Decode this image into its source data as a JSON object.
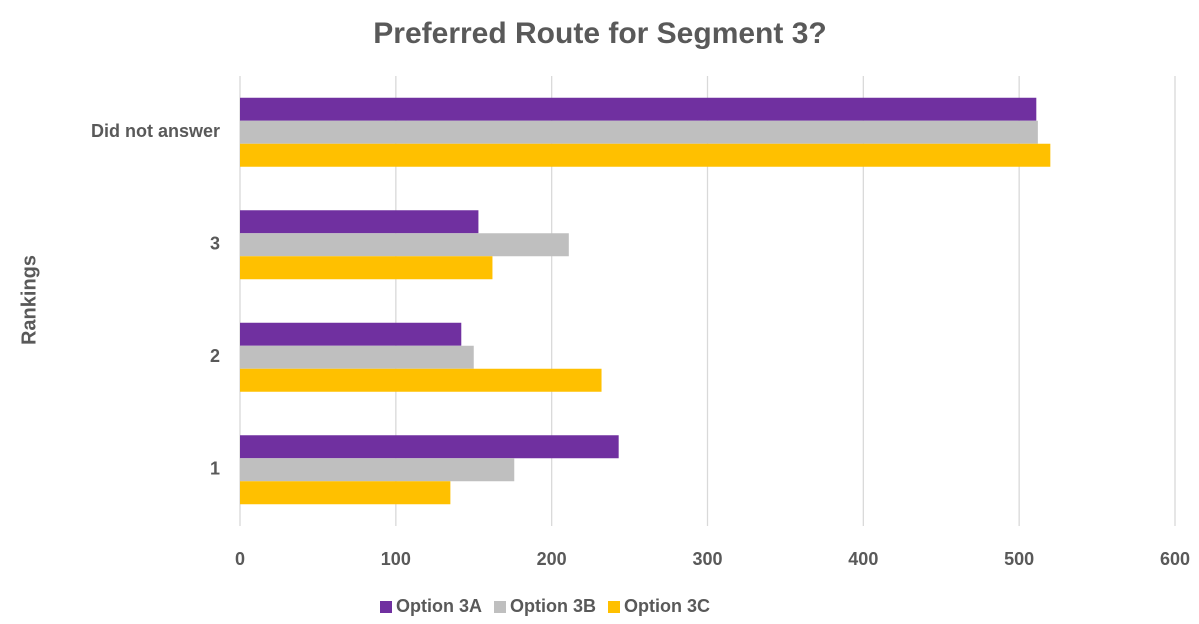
{
  "chart_data": {
    "type": "hbar",
    "title": "Preferred Route for Segment 3?",
    "y_label": "Rankings",
    "categories": [
      "1",
      "2",
      "3",
      "Did not answer"
    ],
    "series": [
      {
        "name": "Option 3A",
        "color": "#7030a0",
        "values": [
          243,
          142,
          153,
          511
        ]
      },
      {
        "name": "Option 3B",
        "color": "#bfbfbf",
        "values": [
          176,
          150,
          211,
          512
        ]
      },
      {
        "name": "Option 3C",
        "color": "#ffc000",
        "values": [
          135,
          232,
          162,
          520
        ]
      }
    ],
    "xlim": [
      0,
      600
    ],
    "xticks": [
      0,
      100,
      200,
      300,
      400,
      500,
      600
    ],
    "grid": true,
    "legend": "bottom"
  }
}
